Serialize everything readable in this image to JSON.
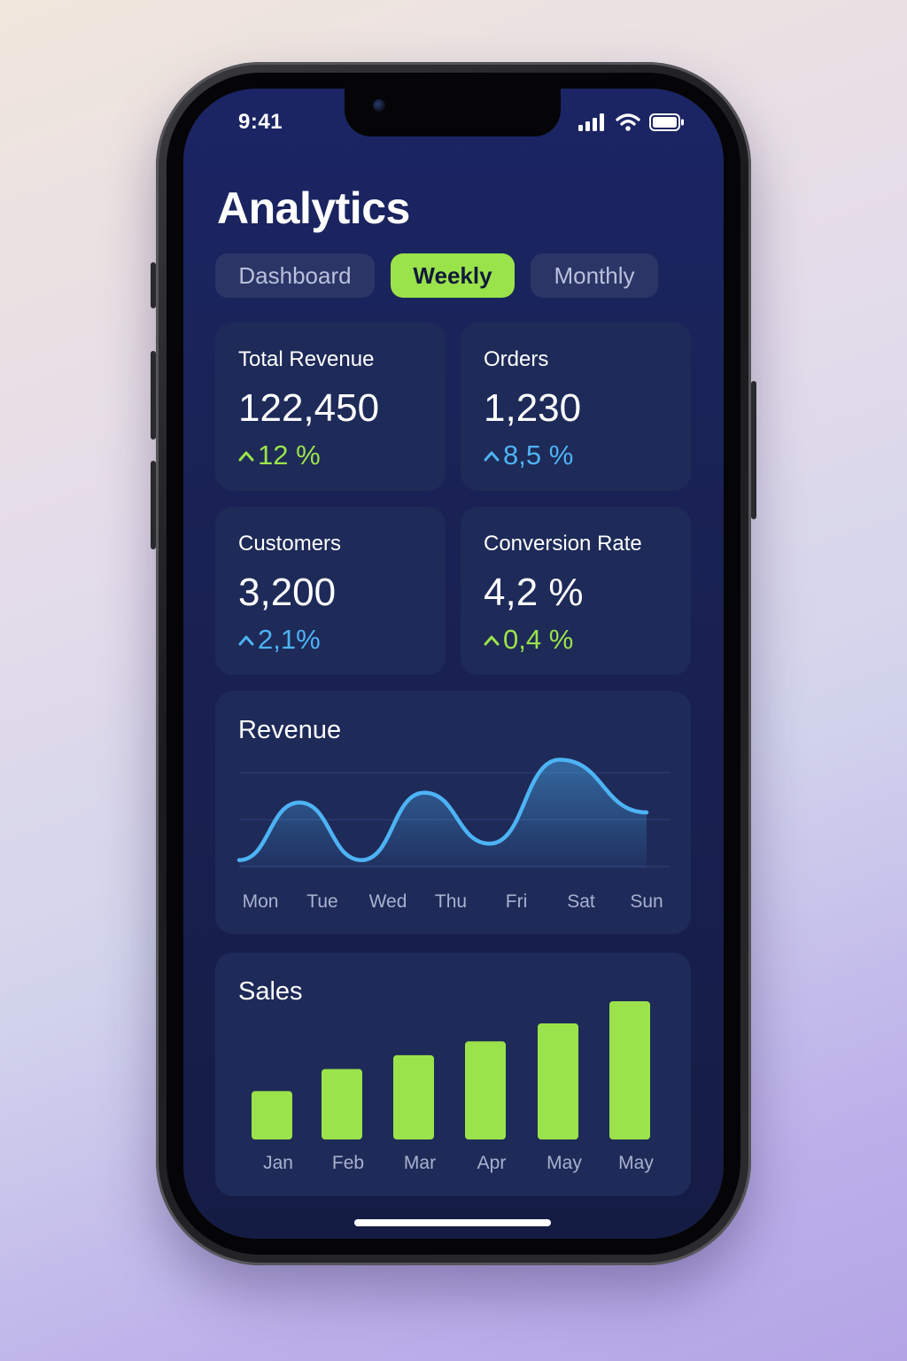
{
  "status_bar": {
    "time": "9:41"
  },
  "header": {
    "title": "Analytics"
  },
  "tabs": [
    {
      "label": "Dashboard",
      "active": false
    },
    {
      "label": "Weekly",
      "active": true
    },
    {
      "label": "Monthly",
      "active": false
    }
  ],
  "stats": [
    {
      "label": "Total Revenue",
      "value": "122,450",
      "change": "12 %",
      "trend": "up",
      "color": "#9be34a"
    },
    {
      "label": "Orders",
      "value": "1,230",
      "change": "8,5 %",
      "trend": "up",
      "color": "#4db3f5"
    },
    {
      "label": "Customers",
      "value": "3,200",
      "change": "2,1%",
      "trend": "up",
      "color": "#4db3f5"
    },
    {
      "label": "Conversion Rate",
      "value": "4,2 %",
      "change": "0,4 %",
      "trend": "up",
      "color": "#9be34a"
    }
  ],
  "colors": {
    "accent_green": "#9be34a",
    "accent_blue": "#4db3f5",
    "card_bg": "#1e2a58",
    "screen_bg": "#1a2356"
  },
  "icons": [
    "cellular-signal-icon",
    "wifi-icon",
    "battery-icon",
    "chevron-up-icon"
  ],
  "chart_data": [
    {
      "type": "line",
      "title": "Revenue",
      "x": [
        "Mon",
        "Tue",
        "Wed",
        "Thu",
        "Fri",
        "Sat",
        "Sun"
      ],
      "series": [
        {
          "values": [
            0,
            70,
            0,
            82,
            20,
            122,
            58
          ]
        }
      ],
      "ylim": [
        -10,
        130
      ],
      "grid": true,
      "area_fill": true,
      "color": "#4db3f5"
    },
    {
      "type": "bar",
      "title": "Sales",
      "categories": [
        "Jan",
        "Feb",
        "Mar",
        "Apr",
        "May",
        "May"
      ],
      "values": [
        35,
        51,
        61,
        71,
        84,
        100
      ],
      "ylim": [
        0,
        100
      ],
      "color": "#9be34a"
    }
  ]
}
